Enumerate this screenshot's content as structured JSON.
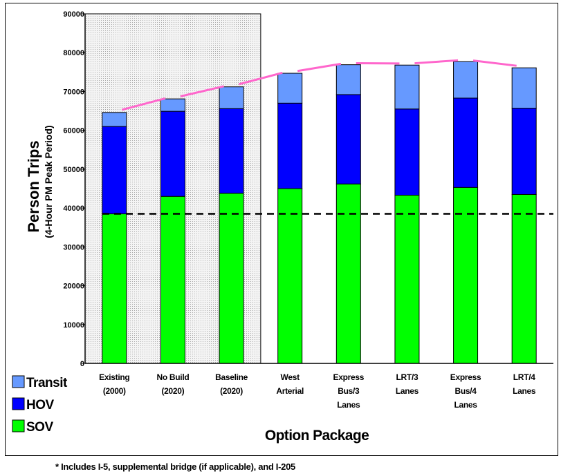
{
  "chart_data": {
    "type": "bar",
    "stacked": true,
    "categories": [
      [
        "Existing",
        "(2000)"
      ],
      [
        "No Build",
        "(2020)"
      ],
      [
        "Baseline",
        "(2020)"
      ],
      [
        "West",
        "Arterial"
      ],
      [
        "Express",
        "Bus/3",
        "Lanes"
      ],
      [
        "LRT/3",
        "Lanes"
      ],
      [
        "Express",
        "Bus/4",
        "Lanes"
      ],
      [
        "LRT/4",
        "Lanes"
      ]
    ],
    "series": [
      {
        "name": "SOV",
        "color": "#00ff00",
        "values": [
          38500,
          43000,
          43800,
          45000,
          46200,
          43300,
          45300,
          43500
        ]
      },
      {
        "name": "HOV",
        "color": "#0000ff",
        "values": [
          22500,
          21900,
          21800,
          22000,
          23000,
          22200,
          23000,
          22200
        ]
      },
      {
        "name": "Transit",
        "color": "#6699ff",
        "values": [
          3600,
          3200,
          5600,
          7700,
          7700,
          11300,
          9400,
          10400
        ]
      }
    ],
    "ylabel": "Person Trips",
    "ylabel_sub": "(4-Hour PM Peak Period)",
    "xlabel": "Option Package",
    "ylim": [
      0,
      90000
    ],
    "yticks": [
      0,
      10000,
      20000,
      30000,
      40000,
      50000,
      60000,
      70000,
      80000,
      90000
    ],
    "grid": false,
    "legend_position": "bottom-left",
    "shaded_region_categories": [
      "Existing",
      "No Build",
      "Baseline"
    ],
    "reference_line": {
      "style": "dashed",
      "color": "#000000",
      "value": 38500
    },
    "total_trend_line": {
      "style": "dashed",
      "color": "#ff66cc"
    },
    "footnote": "* Includes I-5, supplemental bridge (if applicable), and I-205"
  }
}
